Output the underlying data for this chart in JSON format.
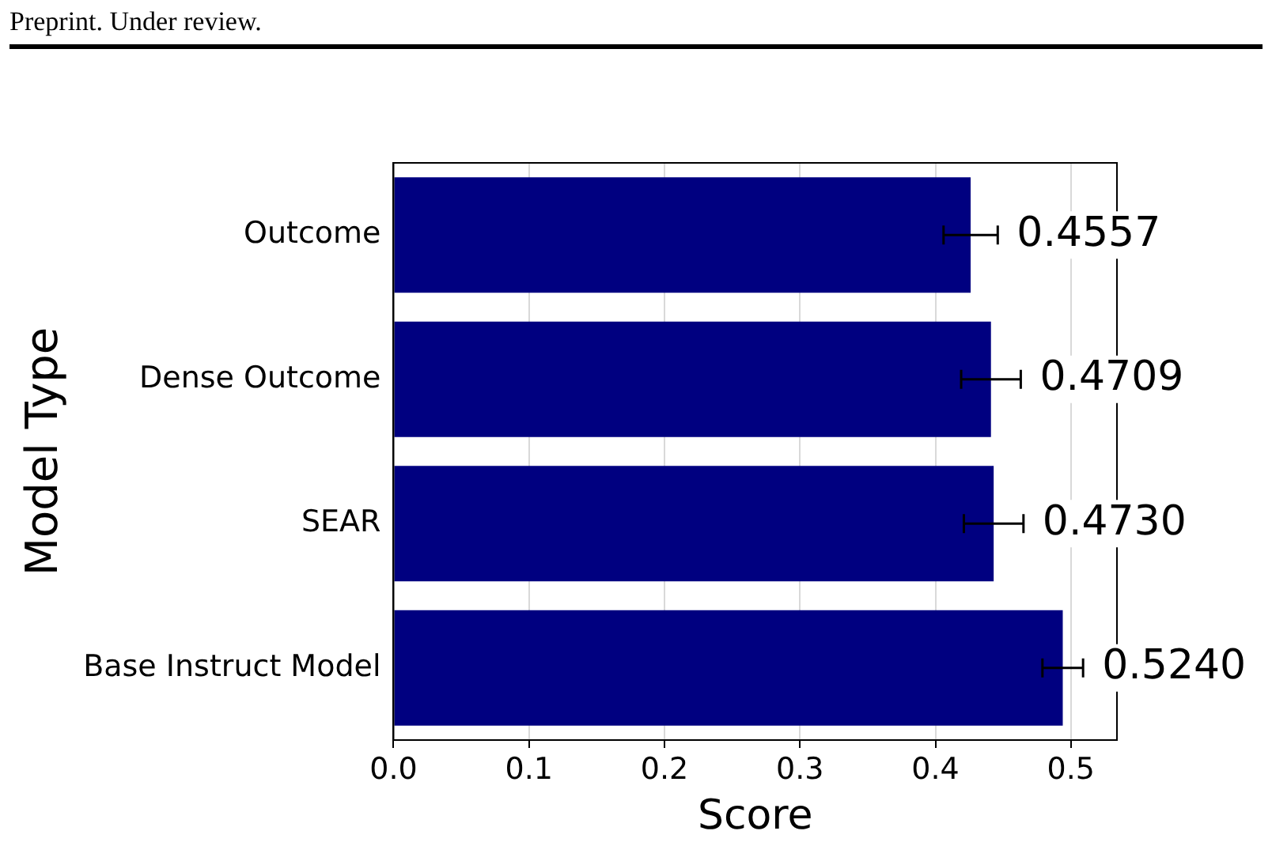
{
  "chart_data": {
    "type": "bar",
    "orientation": "horizontal",
    "annotations": [
      "Preprint. Under review.",
      {
        "text": "0.4557",
        "x": 0.426,
        "y": "Outcome"
      },
      {
        "text": "0.4709",
        "x": 0.441,
        "y": "Dense Outcome"
      },
      {
        "text": "0.4730",
        "x": 0.443,
        "y": "SEAR"
      },
      {
        "text": "0.5240",
        "x": 0.494,
        "y": "Base Instruct Model"
      }
    ],
    "xlabel": "Score",
    "ylabel": "Model Type",
    "categories": [
      "Outcome",
      "Dense Outcome",
      "SEAR",
      "Base Instruct Model"
    ],
    "values": [
      0.426,
      0.441,
      0.443,
      0.494
    ],
    "errors": [
      0.02,
      0.022,
      0.022,
      0.015
    ],
    "color": "#000080",
    "xlim": [
      0,
      0.534
    ],
    "xticks": [
      {
        "value": 0,
        "label": "0.0"
      },
      {
        "value": 0.1,
        "label": "0.1"
      },
      {
        "value": 0.2,
        "label": "0.2"
      },
      {
        "value": 0.3,
        "label": "0.3"
      },
      {
        "value": 0.4,
        "label": "0.4"
      },
      {
        "value": 0.5,
        "label": "0.5"
      }
    ],
    "grid": "x",
    "legend": false
  }
}
